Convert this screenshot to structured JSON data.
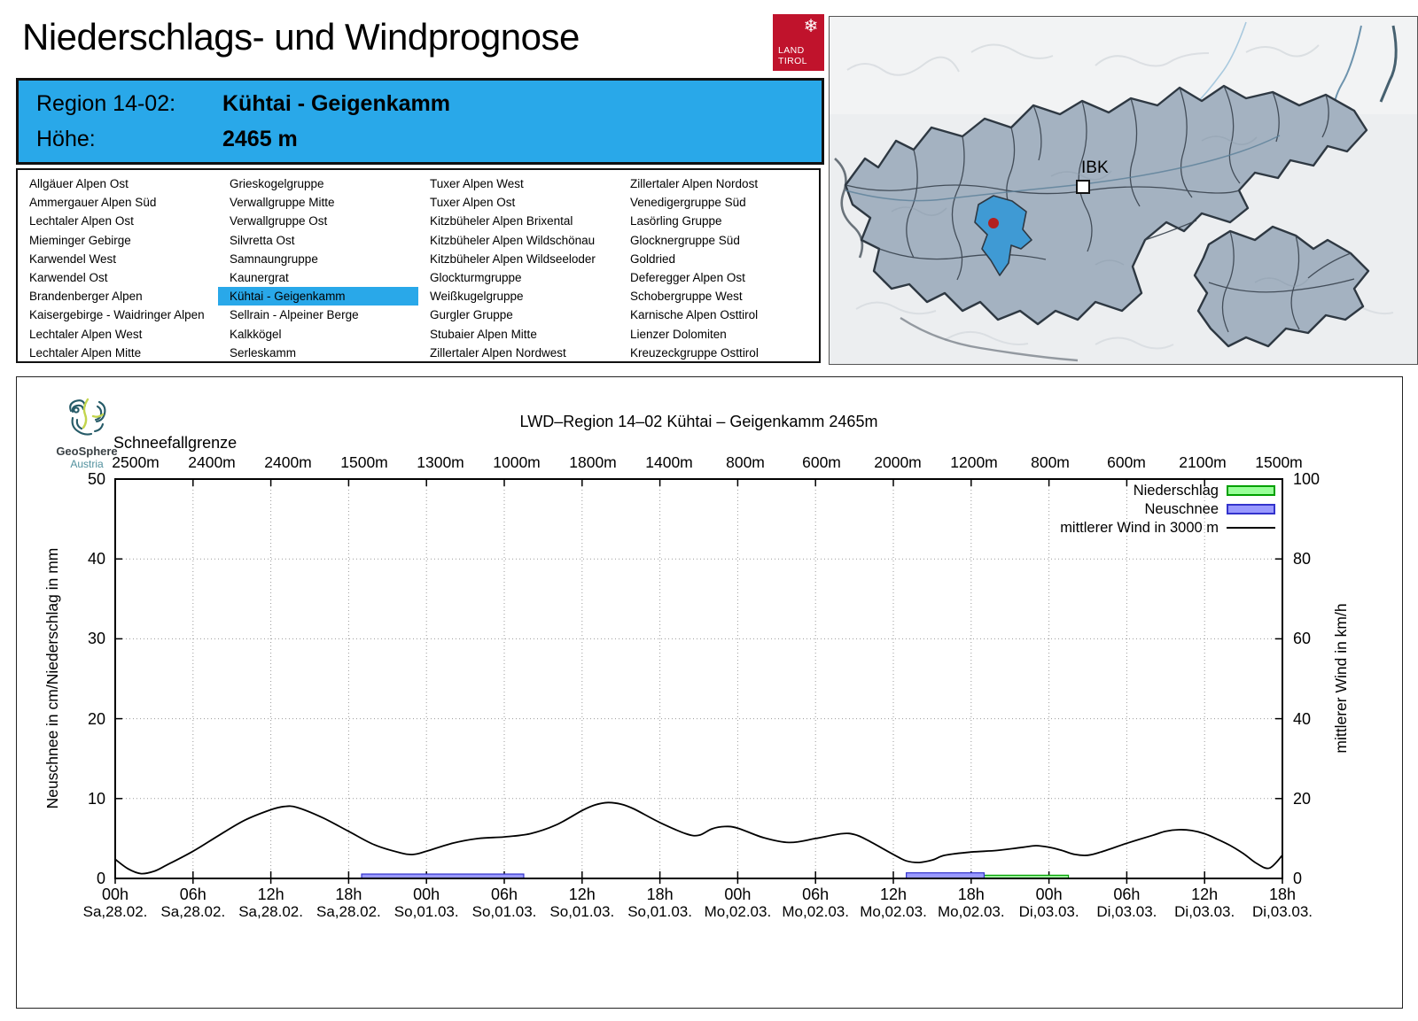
{
  "page": {
    "title": "Niederschlags- und Windprognose"
  },
  "logo_tirol": {
    "line1": "LAND",
    "line2": "TIROL",
    "color": "#c0132c"
  },
  "header": {
    "region_label": "Region 14-02:",
    "region_value": "Kühtai - Geigenkamm",
    "altitude_label": "Höhe:",
    "altitude_value": "2465 m",
    "accent_color": "#29a8e9"
  },
  "region_list": {
    "selected": "Kühtai - Geigenkamm",
    "columns": [
      [
        "Allgäuer Alpen Ost",
        "Ammergauer Alpen Süd",
        "Lechtaler Alpen Ost",
        "Mieminger Gebirge",
        "Karwendel West",
        "Karwendel Ost",
        "Brandenberger Alpen",
        "Kaisergebirge - Waidringer Alpen",
        "Lechtaler Alpen West",
        "Lechtaler Alpen Mitte"
      ],
      [
        "Grieskogelgruppe",
        "Verwallgruppe Mitte",
        "Verwallgruppe Ost",
        "Silvretta Ost",
        "Samnaungruppe",
        "Kaunergrat",
        "Kühtai - Geigenkamm",
        "Sellrain - Alpeiner Berge",
        "Kalkkögel",
        "Serleskamm"
      ],
      [
        "Tuxer Alpen West",
        "Tuxer Alpen Ost",
        "Kitzbüheler Alpen Brixental",
        "Kitzbüheler Alpen Wildschönau",
        "Kitzbüheler Alpen Wildseeloder",
        "Glockturmgruppe",
        "Weißkugelgruppe",
        "Gurgler Gruppe",
        "Stubaier Alpen Mitte",
        "Zillertaler Alpen Nordwest"
      ],
      [
        "Zillertaler Alpen Nordost",
        "Venedigergruppe Süd",
        "Lasörling Gruppe",
        "Glocknergruppe Süd",
        "Goldried",
        "Deferegger Alpen Ost",
        "Schobergruppe West",
        "Karnische Alpen Osttirol",
        "Lienzer Dolomiten",
        "Kreuzeckgruppe Osttirol"
      ]
    ]
  },
  "map": {
    "city_label": "IBK",
    "selected_color": "#3f9ad4",
    "marker_color": "#b22020"
  },
  "geosphere": {
    "name": "GeoSphere",
    "country": "Austria"
  },
  "chart_data": {
    "type": "line+bar",
    "title": "LWD–Region 14–02 Kühtai – Geigenkamm 2465m",
    "snowline_label": "Schneefallgrenze",
    "snowline_values": [
      "2500m",
      "2400m",
      "2400m",
      "1500m",
      "1300m",
      "1000m",
      "1800m",
      "1400m",
      "800m",
      "600m",
      "2000m",
      "1200m",
      "800m",
      "600m",
      "2100m",
      "1500m"
    ],
    "ylabel_left": "Neuschnee in cm/Niederschlag in mm",
    "ylabel_right": "mittlerer Wind in km/h",
    "ylim_left": [
      0,
      50
    ],
    "ylim_right": [
      0,
      100
    ],
    "y_ticks_left": [
      0,
      10,
      20,
      30,
      40,
      50
    ],
    "y_ticks_right": [
      0,
      20,
      40,
      60,
      80,
      100
    ],
    "x_hours_span": 90,
    "x_ticks": [
      {
        "hour": "00h",
        "date": "Sa,28.02."
      },
      {
        "hour": "06h",
        "date": "Sa,28.02."
      },
      {
        "hour": "12h",
        "date": "Sa,28.02."
      },
      {
        "hour": "18h",
        "date": "Sa,28.02."
      },
      {
        "hour": "00h",
        "date": "So,01.03."
      },
      {
        "hour": "06h",
        "date": "So,01.03."
      },
      {
        "hour": "12h",
        "date": "So,01.03."
      },
      {
        "hour": "18h",
        "date": "So,01.03."
      },
      {
        "hour": "00h",
        "date": "Mo,02.03."
      },
      {
        "hour": "06h",
        "date": "Mo,02.03."
      },
      {
        "hour": "12h",
        "date": "Mo,02.03."
      },
      {
        "hour": "18h",
        "date": "Mo,02.03."
      },
      {
        "hour": "00h",
        "date": "Di,03.03."
      },
      {
        "hour": "06h",
        "date": "Di,03.03."
      },
      {
        "hour": "12h",
        "date": "Di,03.03."
      },
      {
        "hour": "18h",
        "date": "Di,03.03."
      }
    ],
    "legend": [
      {
        "label": "Niederschlag",
        "type": "box",
        "fill": "#99ff99",
        "stroke": "#00a000"
      },
      {
        "label": "Neuschnee",
        "type": "box",
        "fill": "#9999ff",
        "stroke": "#3333cc"
      },
      {
        "label": "mittlerer Wind in 3000 m",
        "type": "line",
        "stroke": "#000000"
      }
    ],
    "wind_kmh": [
      [
        0,
        4.8
      ],
      [
        1,
        2.4
      ],
      [
        2,
        1.2
      ],
      [
        3,
        1.8
      ],
      [
        4,
        3.4
      ],
      [
        6,
        6.8
      ],
      [
        8,
        10.8
      ],
      [
        10,
        14.6
      ],
      [
        12,
        17.2
      ],
      [
        13,
        18.0
      ],
      [
        14,
        17.8
      ],
      [
        16,
        15.2
      ],
      [
        18,
        11.8
      ],
      [
        20,
        8.4
      ],
      [
        22,
        6.4
      ],
      [
        23,
        6.0
      ],
      [
        24,
        6.8
      ],
      [
        26,
        8.8
      ],
      [
        28,
        10.0
      ],
      [
        30,
        10.4
      ],
      [
        32,
        11.2
      ],
      [
        34,
        13.4
      ],
      [
        36,
        17.0
      ],
      [
        37,
        18.4
      ],
      [
        38,
        19.0
      ],
      [
        39,
        18.6
      ],
      [
        40,
        17.4
      ],
      [
        42,
        14.0
      ],
      [
        44,
        11.2
      ],
      [
        45,
        10.8
      ],
      [
        46,
        12.4
      ],
      [
        47,
        13.0
      ],
      [
        48,
        12.6
      ],
      [
        50,
        10.2
      ],
      [
        52,
        9.0
      ],
      [
        54,
        10.0
      ],
      [
        56,
        11.2
      ],
      [
        57,
        11.0
      ],
      [
        58,
        9.6
      ],
      [
        60,
        6.0
      ],
      [
        61,
        4.4
      ],
      [
        62,
        4.0
      ],
      [
        63,
        4.6
      ],
      [
        64,
        5.8
      ],
      [
        66,
        6.6
      ],
      [
        68,
        7.0
      ],
      [
        70,
        7.8
      ],
      [
        71,
        8.2
      ],
      [
        72,
        7.8
      ],
      [
        73,
        7.0
      ],
      [
        74,
        6.0
      ],
      [
        75,
        5.8
      ],
      [
        76,
        6.6
      ],
      [
        78,
        8.8
      ],
      [
        80,
        10.8
      ],
      [
        81,
        11.8
      ],
      [
        82,
        12.2
      ],
      [
        83,
        12.0
      ],
      [
        84,
        11.2
      ],
      [
        85,
        9.8
      ],
      [
        86,
        8.2
      ],
      [
        87,
        6.2
      ],
      [
        88,
        3.8
      ],
      [
        89,
        2.6
      ],
      [
        90,
        5.8
      ]
    ],
    "neuschnee_bars_cm": [
      {
        "from": 19,
        "to": 31.5,
        "value": 0.55
      },
      {
        "from": 61,
        "to": 67,
        "value": 0.7
      }
    ],
    "niederschlag_bars_mm": [
      {
        "from": 67,
        "to": 73.5,
        "value": 0.4
      }
    ]
  }
}
